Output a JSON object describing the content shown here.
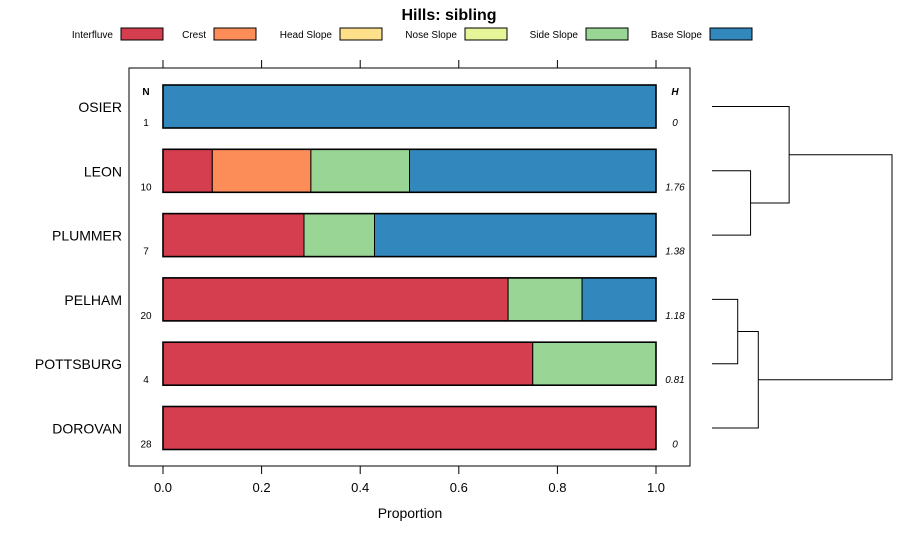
{
  "chart_data": {
    "type": "bar",
    "orientation": "horizontal",
    "stacked": true,
    "title": "Hills: sibling",
    "xlabel": "Proportion",
    "xlim": [
      0,
      1
    ],
    "x_ticks": [
      "0.0",
      "0.2",
      "0.4",
      "0.6",
      "0.8",
      "1.0"
    ],
    "n_header": "N",
    "h_header": "H",
    "legend": [
      {
        "name": "Interfluve",
        "color": "#D53E4F"
      },
      {
        "name": "Crest",
        "color": "#FC8D59"
      },
      {
        "name": "Head Slope",
        "color": "#FEE08B"
      },
      {
        "name": "Nose Slope",
        "color": "#E6F598"
      },
      {
        "name": "Side Slope",
        "color": "#99D594"
      },
      {
        "name": "Base Slope",
        "color": "#3288BD"
      }
    ],
    "categories": [
      "OSIER",
      "LEON",
      "PLUMMER",
      "PELHAM",
      "POTTSBURG",
      "DOROVAN"
    ],
    "n": [
      "1",
      "10",
      "7",
      "20",
      "4",
      "28"
    ],
    "h": [
      "0",
      "1.76",
      "1.38",
      "1.18",
      "0.81",
      "0"
    ],
    "series": [
      {
        "name": "Interfluve",
        "values": [
          0,
          0.1,
          0.286,
          0.7,
          0.75,
          1.0
        ]
      },
      {
        "name": "Crest",
        "values": [
          0,
          0.2,
          0,
          0,
          0,
          0
        ]
      },
      {
        "name": "Head Slope",
        "values": [
          0,
          0,
          0,
          0,
          0,
          0
        ]
      },
      {
        "name": "Nose Slope",
        "values": [
          0,
          0,
          0,
          0,
          0,
          0
        ]
      },
      {
        "name": "Side Slope",
        "values": [
          0,
          0.2,
          0.143,
          0.15,
          0.25,
          0
        ]
      },
      {
        "name": "Base Slope",
        "values": [
          1.0,
          0.5,
          0.571,
          0.15,
          0,
          0
        ]
      }
    ],
    "dendrogram_merges": [
      {
        "left": "LEON",
        "right": "PLUMMER",
        "height": 0.15
      },
      {
        "left": "PELHAM",
        "right": "POTTSBURG",
        "height": 0.1
      },
      {
        "left": "OSIER",
        "right": "LEON+PLUMMER",
        "height": 0.3
      },
      {
        "left": "PELHAM+POTTSBURG",
        "right": "DOROVAN",
        "height": 0.18
      },
      {
        "left": "OSIER+LEON+PLUMMER",
        "right": "PELHAM+POTTSBURG+DOROVAN",
        "height": 0.7
      }
    ]
  }
}
